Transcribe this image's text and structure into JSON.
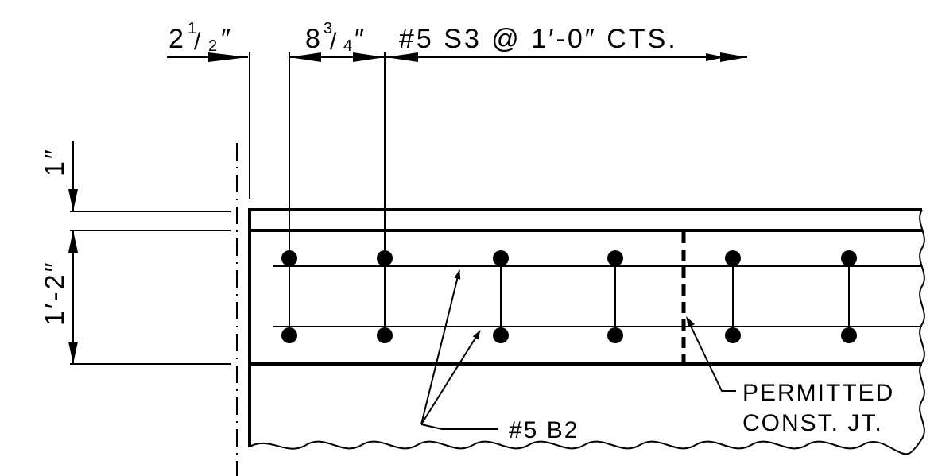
{
  "dimensions": {
    "cover_side": {
      "whole": "2",
      "num": "1",
      "den": "2",
      "unit": "″"
    },
    "first_bar_spacing": {
      "whole": "8",
      "num": "3",
      "den": "4",
      "unit": "″"
    },
    "stirrup_spacing": "#5 S3 @ 1′-0″ CTS.",
    "top_cover": "1″",
    "slab_depth": "1′-2″"
  },
  "callouts": {
    "bottom_bar": "#5 B2",
    "joint_line1": "PERMITTED",
    "joint_line2": "CONST. JT."
  },
  "colors": {
    "ink": "#000000",
    "paper": "#ffffff"
  }
}
